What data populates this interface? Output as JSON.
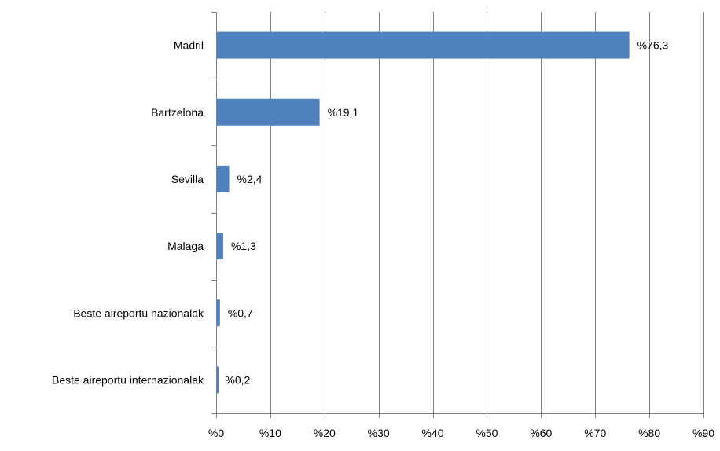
{
  "chart_data": {
    "type": "bar",
    "orientation": "horizontal",
    "categories": [
      "Madril",
      "Bartzelona",
      "Sevilla",
      "Malaga",
      "Beste aireportu nazionalak",
      "Beste aireportu internazionalak"
    ],
    "values": [
      76.3,
      19.1,
      2.4,
      1.3,
      0.7,
      0.2
    ],
    "data_labels": [
      "%76,3",
      "%19,1",
      "%2,4",
      "%1,3",
      "%0,7",
      "%0,2"
    ],
    "x_ticks": [
      0,
      10,
      20,
      30,
      40,
      50,
      60,
      70,
      80,
      90
    ],
    "x_tick_labels": [
      "%0",
      "%10",
      "%20",
      "%30",
      "%40",
      "%50",
      "%60",
      "%70",
      "%80",
      "%90"
    ],
    "xlim": [
      0,
      90
    ],
    "grid": "vertical",
    "legend": "none",
    "bar_color": "#4f81bd",
    "title": "",
    "xlabel": "",
    "ylabel": ""
  }
}
